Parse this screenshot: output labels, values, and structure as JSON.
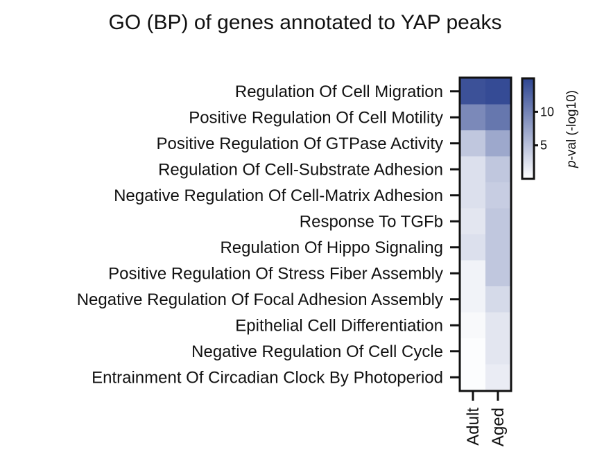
{
  "chart_data": {
    "type": "heatmap",
    "title": "GO (BP) of genes annotated to YAP peaks",
    "rows": [
      "Regulation Of Cell Migration",
      "Positive Regulation Of Cell Motility",
      "Positive Regulation Of GTPase Activity",
      "Regulation Of Cell-Substrate Adhesion",
      "Negative Regulation Of Cell-Matrix Adhesion",
      "Response To TGFb",
      "Regulation Of Hippo Signaling",
      "Positive Regulation Of Stress Fiber Assembly",
      "Negative Regulation Of Focal Adhesion Assembly",
      "Epithelial Cell Differentiation",
      "Negative Regulation Of Cell Cycle",
      "Entrainment Of Circadian Clock By Photoperiod"
    ],
    "columns": [
      "Adult",
      "Aged"
    ],
    "values": [
      [
        14.0,
        14.5
      ],
      [
        9.5,
        11.0
      ],
      [
        4.5,
        7.0
      ],
      [
        2.5,
        4.5
      ],
      [
        2.5,
        4.0
      ],
      [
        2.0,
        4.5
      ],
      [
        2.5,
        4.5
      ],
      [
        1.0,
        4.5
      ],
      [
        1.0,
        3.0
      ],
      [
        0.5,
        2.0
      ],
      [
        0.2,
        2.0
      ],
      [
        0.2,
        1.5
      ]
    ],
    "colorbar": {
      "label": "p-val (-log10)",
      "label_italic_part": "p",
      "label_rest": "-val (-log10)",
      "range": [
        0,
        15
      ],
      "ticks": [
        5,
        10
      ],
      "tick_labels": [
        "5",
        "10"
      ],
      "color_low": "#ffffff",
      "color_high": "#2e4591"
    }
  }
}
